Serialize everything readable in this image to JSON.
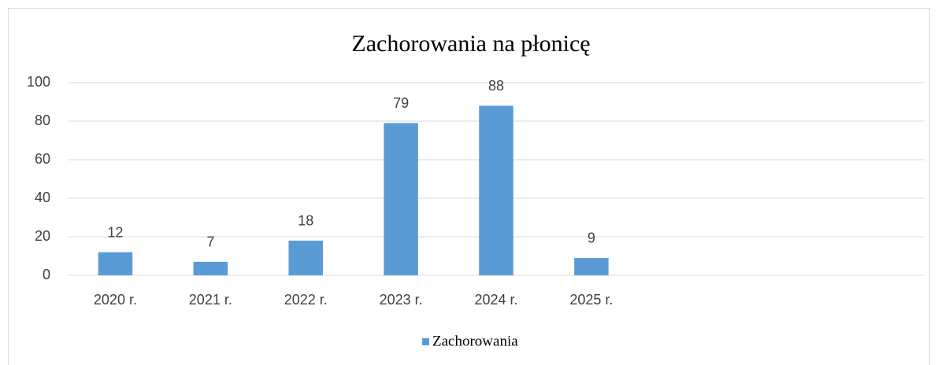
{
  "chart_data": {
    "type": "bar",
    "title": "Zachorowania na płonicę",
    "categories": [
      "2020 r.",
      "2021 r.",
      "2022 r.",
      "2023 r.",
      "2024 r.",
      "2025 r.",
      null,
      null,
      null
    ],
    "series": [
      {
        "name": "Zachorowania",
        "color": "#5b9bd5",
        "values": [
          12,
          7,
          18,
          79,
          88,
          9,
          null,
          null,
          null
        ]
      }
    ],
    "ylim": [
      0,
      100
    ],
    "yticks": [
      0,
      20,
      40,
      60,
      80,
      100
    ],
    "grid": true,
    "legend": "bottom"
  }
}
